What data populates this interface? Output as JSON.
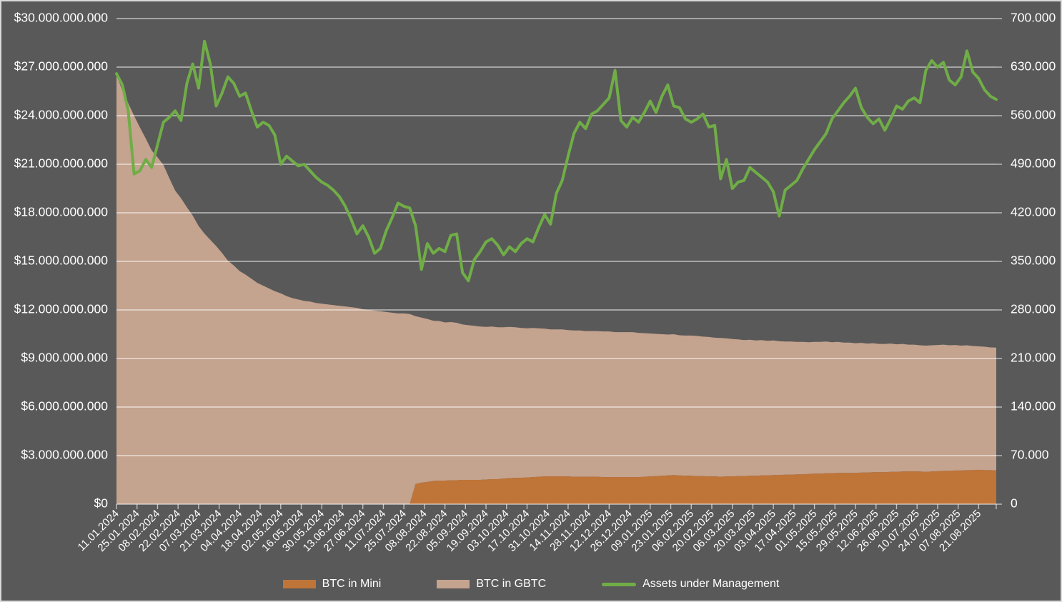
{
  "chart_data": {
    "type": "combo",
    "title": "",
    "background_color": "#595959",
    "text_color": "#FFFFFF",
    "gridline_color": "rgba(255,255,255,0.62)",
    "tick_color": "rgba(255,255,255,0.62)",
    "legend_position": "bottom",
    "left_axis": {
      "label": "",
      "min": 0,
      "max": 30000000000,
      "step": 3000000000,
      "tick_labels": [
        "$30.000.000.000",
        "$27.000.000.000",
        "$24.000.000.000",
        "$21.000.000.000",
        "$18.000.000.000",
        "$15.000.000.000",
        "$12.000.000.000",
        "$9.000.000.000",
        "$6.000.000.000",
        "$3.000.000.000",
        "$0"
      ]
    },
    "right_axis": {
      "label": "",
      "min": 0,
      "max": 700000,
      "step": 70000,
      "tick_labels": [
        "700.000",
        "630.000",
        "560.000",
        "490.000",
        "420.000",
        "350.000",
        "280.000",
        "210.000",
        "140.000",
        "70.000",
        "0"
      ]
    },
    "x_axis": {
      "start_date": "11.01.2024",
      "end_date": "02.09.2025",
      "data_step_days": 4,
      "label_step_days": 14,
      "tick_labels": [
        "11.01.2024",
        "25.01.2024",
        "08.02.2024",
        "22.02.2024",
        "07.03.2024",
        "21.03.2024",
        "04.04.2024",
        "18.04.2024",
        "02.05.2024",
        "16.05.2024",
        "30.05.2024",
        "13.06.2024",
        "27.06.2024",
        "11.07.2024",
        "25.07.2024",
        "08.08.2024",
        "22.08.2024",
        "05.09.2024",
        "19.09.2024",
        "03.10.2024",
        "17.10.2024",
        "31.10.2024",
        "14.11.2024",
        "28.11.2024",
        "12.12.2024",
        "26.12.2024",
        "09.01.2025",
        "23.01.2025",
        "06.02.2025",
        "20.02.2025",
        "06.03.2025",
        "20.03.2025",
        "03.04.2025",
        "17.04.2025",
        "01.05.2025",
        "15.05.2025",
        "29.05.2025",
        "12.06.2025",
        "26.06.2025",
        "10.07.2025",
        "24.07.2025",
        "07.08.2025",
        "21.08.2025"
      ]
    },
    "series": [
      {
        "name": "BTC in Mini",
        "type": "area",
        "axis": "right",
        "stack": "btc",
        "color": "#BF7438",
        "unit": "thousand BTC",
        "values": [
          0,
          0,
          0,
          0,
          0,
          0,
          0,
          0,
          0,
          0,
          0,
          0,
          0,
          0,
          0,
          0,
          0,
          0,
          0,
          0,
          0,
          0,
          0,
          0,
          0,
          0,
          0,
          0,
          0,
          0,
          0,
          0,
          0,
          0,
          0,
          0,
          0,
          0,
          0,
          0,
          0,
          0,
          0,
          0,
          0,
          0,
          0,
          0,
          0,
          0,
          0,
          29,
          31,
          32,
          33.5,
          34,
          34,
          34.5,
          34.5,
          35,
          35,
          35,
          35,
          35.5,
          36,
          36,
          37,
          37.5,
          38,
          38,
          38.5,
          39,
          39.5,
          40,
          40,
          40,
          40,
          40,
          39.5,
          39.5,
          39.5,
          39.5,
          39.5,
          39,
          39,
          39,
          39,
          39,
          39,
          39,
          39.5,
          40,
          40.5,
          41,
          41.5,
          42,
          41.5,
          41,
          41,
          40.5,
          40.5,
          40,
          40,
          39.5,
          40,
          40,
          40.5,
          40.5,
          41,
          41,
          41.5,
          41.5,
          42,
          42,
          42.5,
          42.5,
          43,
          43,
          43.5,
          44,
          44,
          44.5,
          44.5,
          45,
          45,
          45,
          45,
          45.5,
          45.5,
          46,
          46,
          46,
          46.5,
          46.5,
          47,
          47,
          47,
          47,
          46.5,
          47,
          47.5,
          48,
          48,
          48.5,
          48.5,
          49,
          49,
          49.5,
          49,
          49,
          48.7
        ]
      },
      {
        "name": "BTC in GBTC",
        "type": "area",
        "axis": "right",
        "stack": "btc",
        "color": "#C4A38F",
        "unit": "thousand BTC",
        "values": [
          619,
          596,
          578,
          560,
          543,
          527,
          510,
          500,
          489,
          470,
          452,
          441,
          428,
          416,
          401,
          390,
          381,
          372,
          362,
          351,
          344,
          336,
          331,
          325,
          319,
          315,
          311,
          307,
          304,
          300,
          297,
          295,
          293,
          292,
          290,
          289,
          288,
          287,
          286,
          285,
          284,
          283,
          281,
          280,
          279,
          278,
          277,
          276,
          275,
          275,
          274,
          242,
          238,
          235,
          231,
          230,
          228,
          228,
          227,
          224,
          223,
          222,
          221,
          220,
          220,
          219,
          218,
          218,
          217,
          216,
          215,
          215,
          214,
          213,
          212,
          212,
          212,
          211,
          211,
          211,
          210,
          210,
          210,
          210,
          210,
          209,
          209,
          209,
          209,
          208,
          207,
          206,
          205,
          204,
          203,
          203,
          202,
          202,
          202,
          202,
          201,
          201,
          200,
          200,
          199,
          198,
          197,
          196,
          196,
          195,
          195,
          194,
          194,
          193,
          192,
          192,
          191,
          191,
          190,
          190,
          190,
          190,
          189,
          189,
          188,
          188,
          187,
          187,
          186,
          186,
          185,
          185,
          185,
          184,
          184,
          183,
          183,
          182,
          182,
          182,
          182,
          182,
          181,
          181,
          180,
          180,
          179,
          178,
          178,
          177,
          177
        ]
      },
      {
        "name": "Assets under Management",
        "type": "line",
        "axis": "left",
        "color": "#70AD47",
        "unit": "billion USD",
        "values": [
          26.6,
          25.9,
          24.3,
          20.4,
          20.6,
          21.3,
          20.8,
          22.2,
          23.6,
          23.9,
          24.3,
          23.7,
          26.0,
          27.2,
          25.7,
          28.6,
          27.2,
          24.6,
          25.4,
          26.4,
          26.0,
          25.2,
          25.4,
          24.3,
          23.3,
          23.6,
          23.4,
          22.8,
          21.0,
          21.5,
          21.2,
          20.9,
          21.0,
          20.6,
          20.2,
          19.9,
          19.7,
          19.4,
          19.0,
          18.4,
          17.6,
          16.7,
          17.2,
          16.5,
          15.5,
          15.8,
          16.9,
          17.7,
          18.6,
          18.4,
          18.3,
          17.2,
          14.5,
          16.1,
          15.5,
          15.8,
          15.6,
          16.6,
          16.7,
          14.3,
          13.8,
          15.1,
          15.6,
          16.2,
          16.4,
          16.0,
          15.4,
          15.9,
          15.6,
          16.1,
          16.4,
          16.2,
          17.1,
          17.9,
          17.3,
          19.2,
          20.0,
          21.5,
          22.9,
          23.6,
          23.2,
          24.1,
          24.3,
          24.7,
          25.1,
          26.8,
          23.7,
          23.3,
          23.9,
          23.6,
          24.2,
          24.9,
          24.2,
          25.2,
          25.9,
          24.6,
          24.5,
          23.8,
          23.6,
          23.8,
          24.1,
          23.3,
          23.4,
          20.1,
          21.3,
          19.5,
          19.9,
          20.0,
          20.8,
          20.5,
          20.2,
          19.9,
          19.3,
          17.8,
          19.4,
          19.7,
          20.0,
          20.7,
          21.3,
          21.9,
          22.4,
          22.9,
          23.8,
          24.3,
          24.8,
          25.2,
          25.7,
          24.5,
          23.9,
          23.5,
          23.8,
          23.1,
          23.8,
          24.6,
          24.4,
          24.9,
          25.1,
          24.8,
          26.8,
          27.4,
          27.0,
          27.3,
          26.2,
          25.9,
          26.4,
          28.0,
          26.7,
          26.3,
          25.6,
          25.2,
          25.0
        ]
      }
    ]
  }
}
